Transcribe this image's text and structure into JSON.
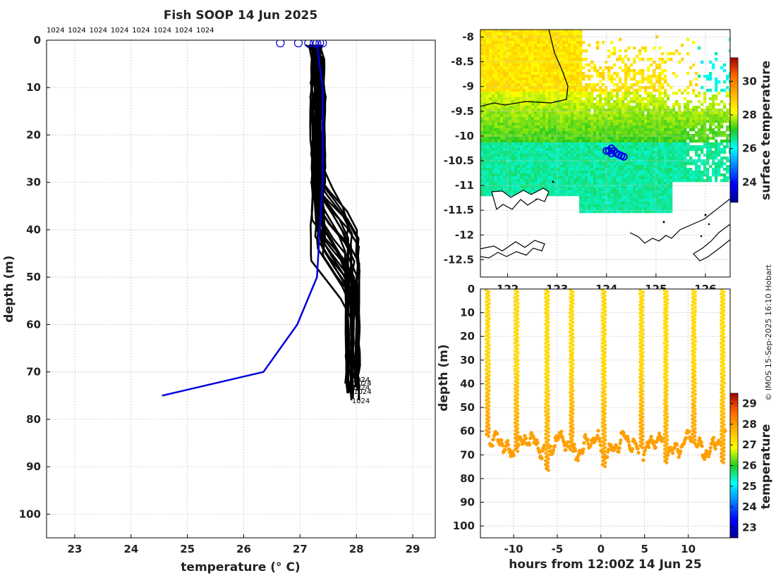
{
  "chart_data": [
    {
      "panel": "profiles",
      "type": "line",
      "title": "Fish SOOP 14 Jun 2025",
      "xlabel": "temperature (° C)",
      "ylabel": "depth (m)",
      "xlim": [
        22.5,
        29.4
      ],
      "ylim": [
        105,
        0
      ],
      "xticks": [
        23,
        24,
        25,
        26,
        27,
        28,
        29
      ],
      "yticks": [
        0,
        10,
        20,
        30,
        40,
        50,
        60,
        70,
        80,
        90,
        100
      ],
      "top_labels": [
        "1024",
        "1024",
        "1024",
        "1024",
        "1024",
        "1024",
        "1024",
        "1024"
      ],
      "profile_end_label": "1024",
      "climatology": {
        "name": "climatology",
        "color": "#0000dd",
        "temperature": [
          27.3,
          27.4,
          27.4,
          27.35,
          27.3,
          26.95,
          26.35,
          24.55
        ],
        "depth": [
          1,
          10,
          30,
          40,
          50,
          60,
          70,
          75
        ]
      },
      "surface_markers": [
        26.65,
        26.97,
        27.15,
        27.25,
        27.3,
        27.35,
        27.4
      ],
      "profiles_summary": {
        "count": 26,
        "surface_temp": [
          27.15,
          27.45
        ],
        "mixed_layer_temp": [
          27.2,
          27.45
        ],
        "mixed_layer_bottom_depth": [
          28,
          46
        ],
        "deep_temp": [
          27.8,
          28.05
        ],
        "max_depth": [
          70,
          76
        ]
      }
    },
    {
      "panel": "map",
      "type": "heatmap",
      "colorbar_label": "surface temperature",
      "xlim": [
        121.45,
        126.5
      ],
      "ylim": [
        -12.85,
        -7.85
      ],
      "xticks": [
        122,
        123,
        124,
        125,
        126
      ],
      "yticks": [
        -8,
        -8.5,
        -9,
        -9.5,
        -10,
        -10.5,
        -11,
        -11.5,
        -12,
        -12.5
      ],
      "ytick_labels": [
        "-8",
        "-8.5",
        "-9",
        "-9.5",
        "-10",
        "-10.5",
        "-11",
        "-11.5",
        "-12",
        "-12.5"
      ],
      "clim": [
        22.8,
        31.4
      ],
      "cticks": [
        24,
        26,
        28,
        30
      ],
      "track": [
        [
          124.05,
          -10.3
        ],
        [
          124.1,
          -10.35
        ],
        [
          124.15,
          -10.3
        ],
        [
          124.2,
          -10.35
        ],
        [
          124.25,
          -10.38
        ],
        [
          124.3,
          -10.4
        ],
        [
          124.35,
          -10.42
        ],
        [
          124.0,
          -10.3
        ],
        [
          124.1,
          -10.25
        ]
      ]
    },
    {
      "panel": "time_depth",
      "type": "scatter",
      "xlabel": "hours from 12:00Z 14 Jun 25",
      "ylabel": "depth (m)",
      "colorbar_label": "temperature",
      "xlim": [
        -13.8,
        14.8
      ],
      "ylim": [
        105,
        0
      ],
      "xticks": [
        -10,
        -5,
        0,
        5,
        10
      ],
      "xtick_labels": [
        "-10",
        "-5",
        "0",
        "5",
        "10"
      ],
      "yticks": [
        0,
        10,
        20,
        30,
        40,
        50,
        60,
        70,
        80,
        90,
        100
      ],
      "clim": [
        22.5,
        29.5
      ],
      "cticks": [
        23,
        24,
        25,
        26,
        27,
        28,
        29
      ],
      "casts_hours": [
        -13,
        -9.7,
        -6.2,
        -3.4,
        0.3,
        4.6,
        7.4,
        10.6,
        13.9
      ],
      "bottom_depth_range": [
        62,
        76
      ],
      "surface_temp": 27.3,
      "bottom_temp": 28.0
    }
  ],
  "credit": "© IMOS 15-Sep-2025 16:10 Hobart"
}
